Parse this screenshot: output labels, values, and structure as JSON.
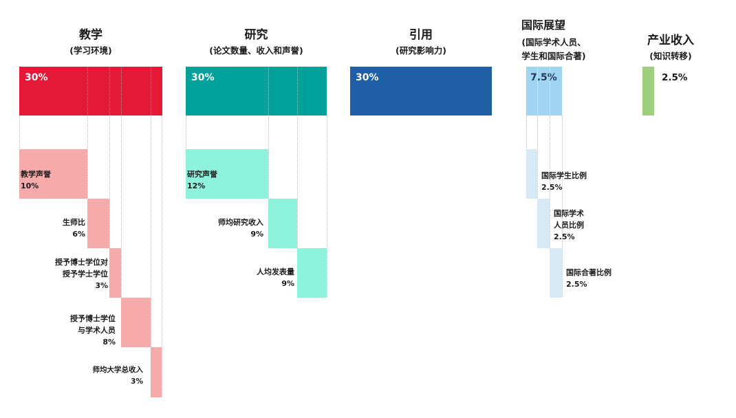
{
  "colors": {
    "teaching_main": "#e51937",
    "teaching_sub": "#f7aaaa",
    "research_main": "#00a19a",
    "research_sub": "#8ef2dc",
    "citations": "#1f5fa6",
    "intl_main": "#9fd4f2",
    "intl_sub": "#d6eaf5",
    "industry": "#9fcf7e"
  },
  "pillars": {
    "teaching": {
      "title": "教学",
      "subtitle": "(学习环境)",
      "weight": "30%"
    },
    "research": {
      "title": "研究",
      "subtitle": "(论文数量、收入和声誉)",
      "weight": "30%"
    },
    "citations": {
      "title": "引用",
      "subtitle": "(研究影响力)",
      "weight": "30%"
    },
    "international": {
      "title": "国际展望",
      "subtitle_line1": "(国际学术人员、",
      "subtitle_line2": "学生和国际合著)",
      "weight": "7.5%"
    },
    "industry": {
      "title": "产业收入",
      "subtitle": "(知识转移)",
      "weight": "2.5%"
    }
  },
  "teaching_metrics": [
    {
      "name": "教学声誉",
      "weight": "10%"
    },
    {
      "name": "生师比",
      "weight": "6%"
    },
    {
      "name_line1": "授予博士学位对",
      "name_line2": "授予学士学位",
      "weight": "3%"
    },
    {
      "name_line1": "授予博士学位",
      "name_line2": "与学术人员",
      "weight": "8%"
    },
    {
      "name": "师均大学总收入",
      "weight": "3%"
    }
  ],
  "research_metrics": [
    {
      "name": "研究声誉",
      "weight": "12%"
    },
    {
      "name": "师均研究收入",
      "weight": "9%"
    },
    {
      "name": "人均发表量",
      "weight": "9%"
    }
  ],
  "international_metrics": [
    {
      "name": "国际学生比例",
      "weight": "2.5%"
    },
    {
      "name_line1": "国际学术",
      "name_line2": "人员比例",
      "weight": "2.5%"
    },
    {
      "name": "国际合著比例",
      "weight": "2.5%"
    }
  ]
}
